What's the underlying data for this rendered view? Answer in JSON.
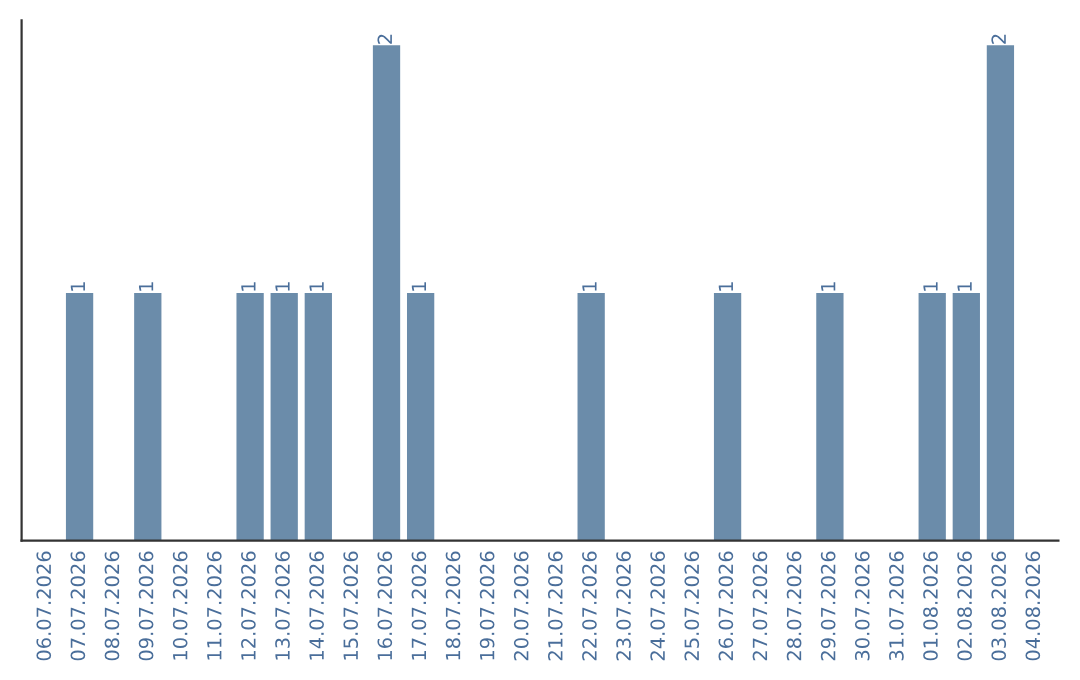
{
  "chart_data": {
    "type": "bar",
    "categories": [
      "06.07.2026",
      "07.07.2026",
      "08.07.2026",
      "09.07.2026",
      "10.07.2026",
      "11.07.2026",
      "12.07.2026",
      "13.07.2026",
      "14.07.2026",
      "15.07.2026",
      "16.07.2026",
      "17.07.2026",
      "18.07.2026",
      "19.07.2026",
      "20.07.2026",
      "21.07.2026",
      "22.07.2026",
      "23.07.2026",
      "24.07.2026",
      "25.07.2026",
      "26.07.2026",
      "27.07.2026",
      "28.07.2026",
      "29.07.2026",
      "30.07.2026",
      "31.07.2026",
      "01.08.2026",
      "02.08.2026",
      "03.08.2026",
      "04.08.2026"
    ],
    "values": [
      0,
      1,
      0,
      1,
      0,
      0,
      1,
      1,
      1,
      0,
      2,
      1,
      0,
      0,
      0,
      0,
      1,
      0,
      0,
      0,
      1,
      0,
      0,
      1,
      0,
      0,
      1,
      1,
      2,
      0
    ],
    "value_labels": [
      null,
      "1",
      null,
      "1",
      null,
      null,
      "1",
      "1",
      "1",
      null,
      "2",
      "1",
      null,
      null,
      null,
      null,
      "1",
      null,
      null,
      null,
      "1",
      null,
      null,
      "1",
      null,
      null,
      "1",
      "1",
      "2",
      null
    ],
    "color": "#6b8caa",
    "tick_labels": "x",
    "grid": false
  }
}
